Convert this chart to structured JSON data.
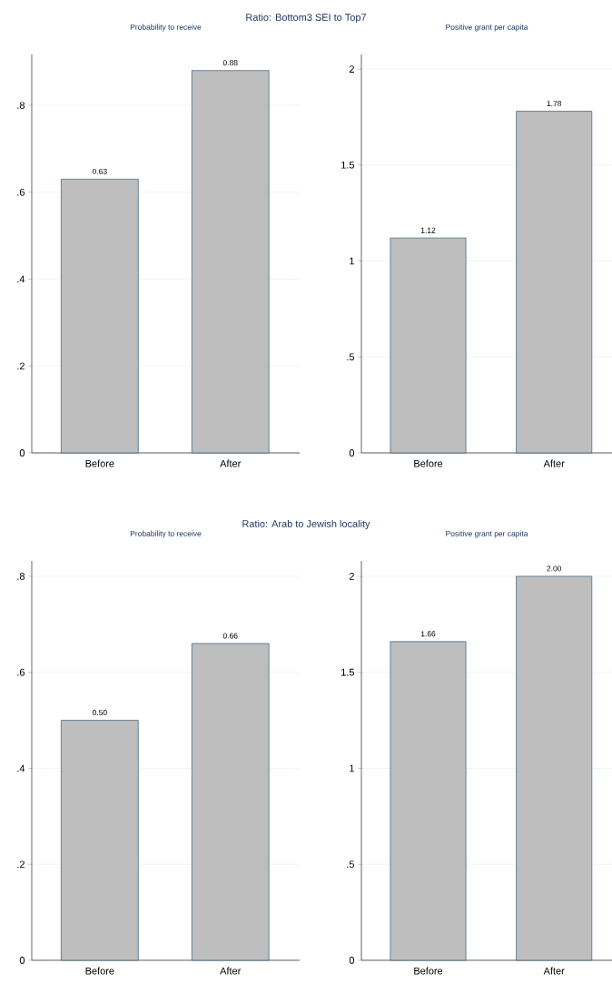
{
  "chart_data": [
    {
      "type": "bar",
      "title": "Probability to receive",
      "annotations": [
        "Ratio: Bottom3 SEI to Top7"
      ],
      "categories": [
        "Before",
        "After"
      ],
      "values": [
        0.63,
        0.88
      ],
      "value_labels": [
        "0.63",
        "0.88"
      ],
      "color": "#bebebe",
      "ylim": [
        0,
        0.917
      ],
      "yticks": [
        0,
        {
          "value": 0.2,
          "label": ".2"
        },
        {
          "value": 0.4,
          "label": ".4"
        },
        {
          "value": 0.6,
          "label": ".6"
        },
        {
          "value": 0.8,
          "label": ".8"
        }
      ],
      "grid": "y"
    },
    {
      "type": "bar",
      "title": "Positive grant per capita",
      "categories": [
        "Before",
        "After"
      ],
      "values": [
        1.12,
        1.78
      ],
      "value_labels": [
        "1.12",
        "1.78"
      ],
      "color": "#bebebe",
      "ylim": [
        0,
        2.076
      ],
      "yticks": [
        0,
        {
          "value": 0.5,
          "label": ".5"
        },
        1,
        1.5,
        2
      ],
      "grid": "y"
    },
    {
      "type": "bar",
      "title": "Probability to receive",
      "annotations": [
        "Ratio: Arab to Jewish locality"
      ],
      "categories": [
        "Before",
        "After"
      ],
      "values": [
        0.5,
        0.66
      ],
      "value_labels": [
        "0.50",
        "0.66"
      ],
      "color": "#bebebe",
      "ylim": [
        0,
        0.832
      ],
      "yticks": [
        0,
        {
          "value": 0.2,
          "label": ".2"
        },
        {
          "value": 0.4,
          "label": ".4"
        },
        {
          "value": 0.6,
          "label": ".6"
        },
        {
          "value": 0.8,
          "label": ".8"
        }
      ],
      "grid": "y"
    },
    {
      "type": "bar",
      "title": "Positive grant per capita",
      "categories": [
        "Before",
        "After"
      ],
      "values": [
        1.66,
        2.0
      ],
      "value_labels": [
        "1.66",
        "2.00"
      ],
      "color": "#bebebe",
      "ylim": [
        0,
        2.08
      ],
      "yticks": [
        0,
        {
          "value": 0.5,
          "label": ".5"
        },
        1,
        1.5,
        2
      ],
      "grid": "y"
    }
  ]
}
